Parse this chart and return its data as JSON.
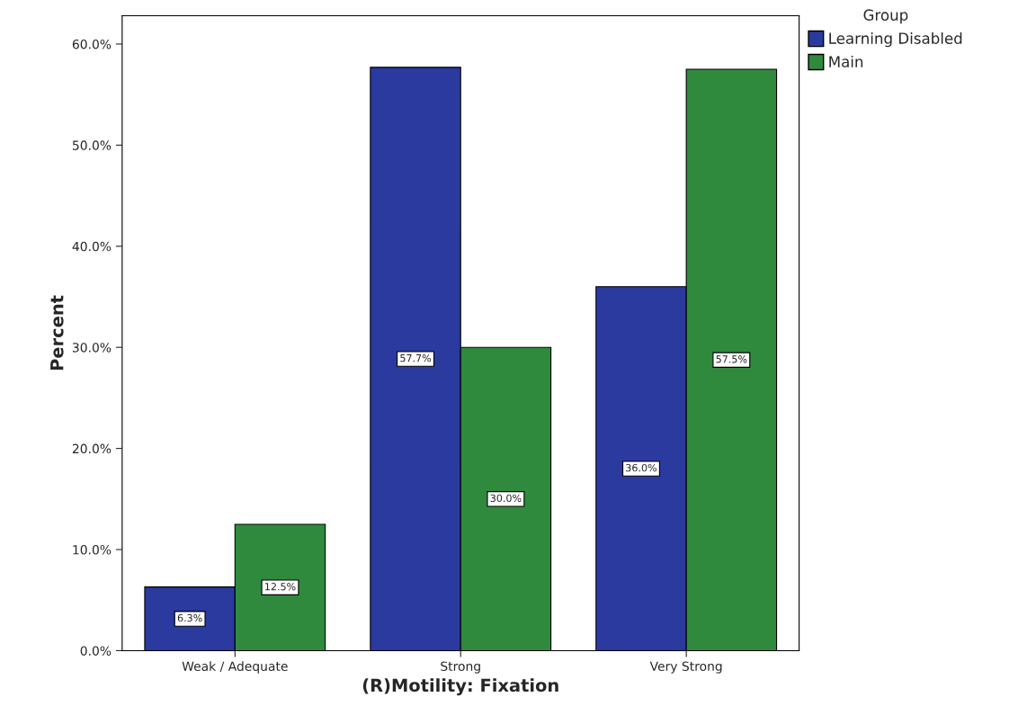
{
  "chart_data": {
    "type": "bar",
    "xlabel": "(R)Motility: Fixation",
    "ylabel": "Percent",
    "legend_title": "Group",
    "categories": [
      "Weak / Adequate",
      "Strong",
      "Very Strong"
    ],
    "series": [
      {
        "name": "Learning Disabled",
        "color": "#2b3a9f",
        "values": [
          6.3,
          57.7,
          36.0
        ],
        "value_labels": [
          "6.3%",
          "57.7%",
          "36.0%"
        ]
      },
      {
        "name": "Main",
        "color": "#2f8a3d",
        "values": [
          12.5,
          30.0,
          57.5
        ],
        "value_labels": [
          "12.5%",
          "30.0%",
          "57.5%"
        ]
      }
    ],
    "ylim": [
      0,
      62.8
    ],
    "yticks": [
      {
        "value": 0,
        "label": "0.0%"
      },
      {
        "value": 10,
        "label": "10.0%"
      },
      {
        "value": 20,
        "label": "20.0%"
      },
      {
        "value": 30,
        "label": "30.0%"
      },
      {
        "value": 40,
        "label": "40.0%"
      },
      {
        "value": 50,
        "label": "50.0%"
      },
      {
        "value": 60,
        "label": "60.0%"
      }
    ],
    "grid": false,
    "legend": "top right"
  }
}
